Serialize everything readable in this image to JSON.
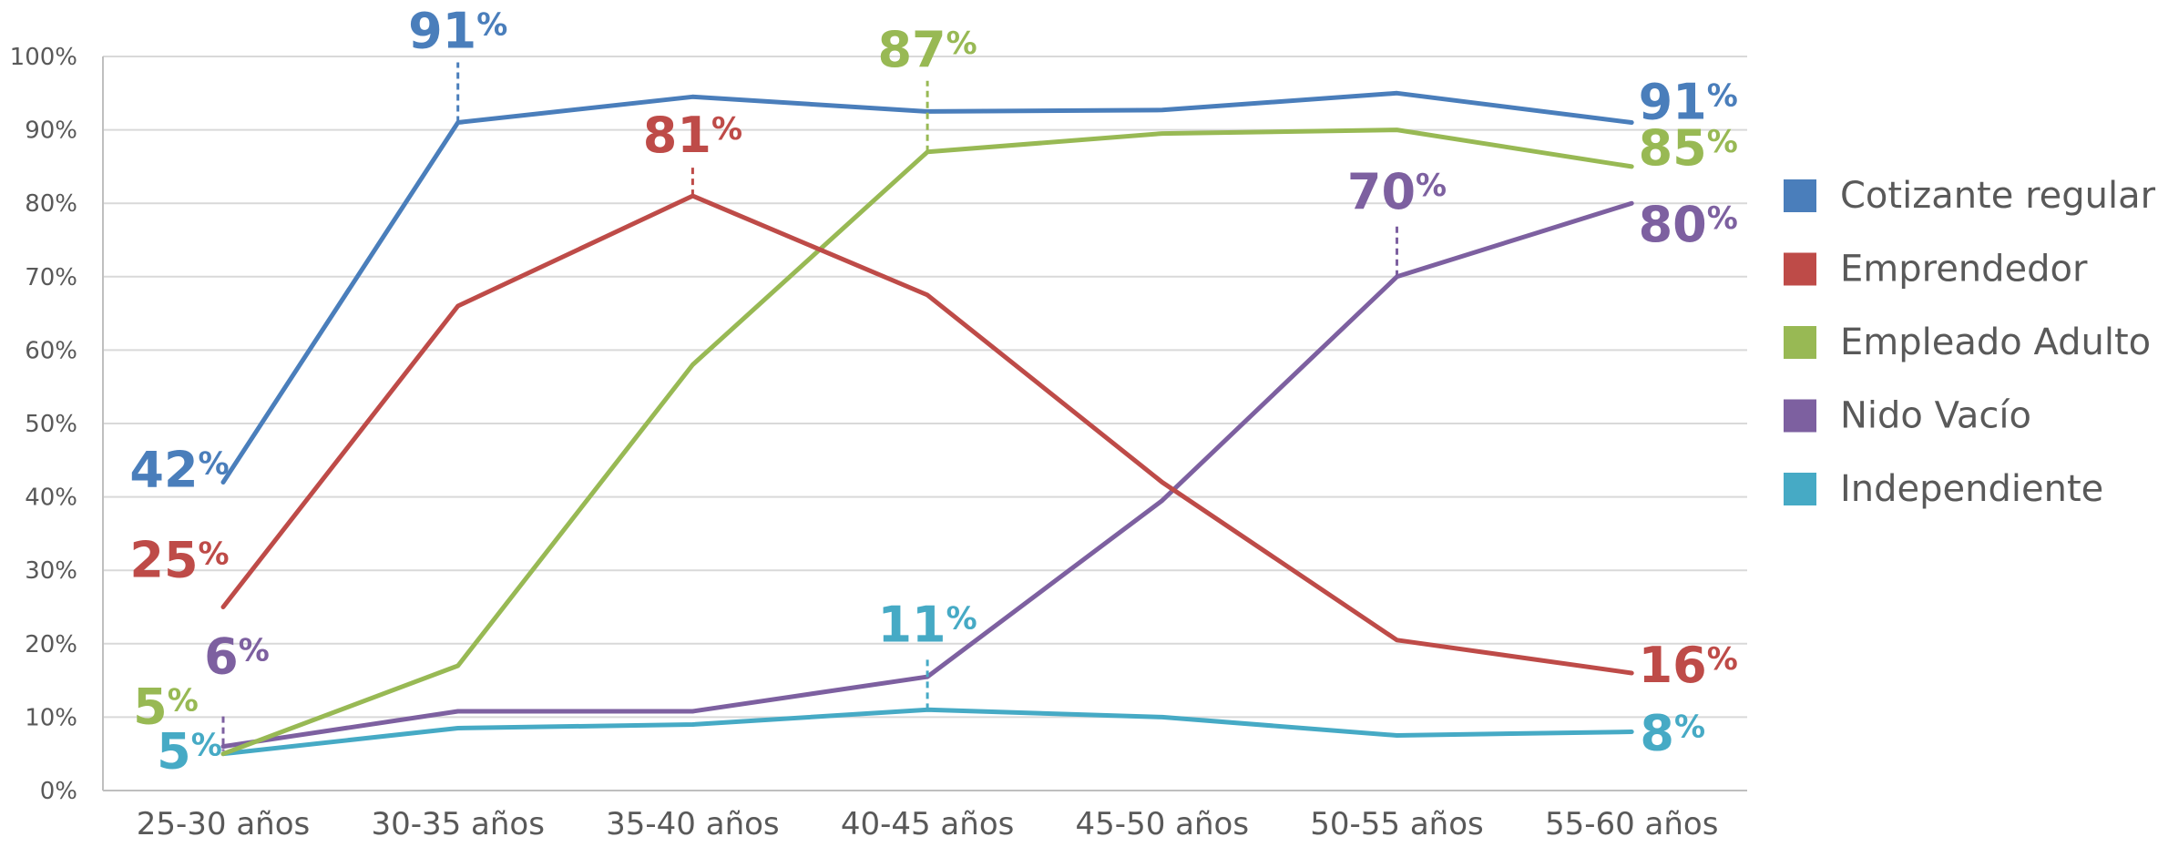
{
  "chart_data": {
    "type": "line",
    "categories": [
      "25-30 años",
      "30-35 años",
      "35-40 años",
      "40-45 años",
      "45-50 años",
      "50-55 años",
      "55-60 años"
    ],
    "ylim": [
      0,
      100
    ],
    "yticks": [
      "0%",
      "10%",
      "20%",
      "30%",
      "40%",
      "50%",
      "60%",
      "70%",
      "80%",
      "90%",
      "100%"
    ],
    "grid": true,
    "legend_position": "right",
    "series": [
      {
        "name": "Cotizante regular",
        "color": "#4a7ebb",
        "values": [
          42,
          91,
          94.5,
          92.5,
          92.7,
          95,
          91
        ]
      },
      {
        "name": "Emprendedor",
        "color": "#be4b48",
        "values": [
          25,
          66,
          81,
          67.5,
          42,
          20.5,
          16
        ]
      },
      {
        "name": "Empleado Adulto",
        "color": "#98b954",
        "values": [
          5,
          17,
          58,
          87,
          89.5,
          90,
          85
        ]
      },
      {
        "name": "Nido Vacío",
        "color": "#7d60a0",
        "values": [
          6,
          10.8,
          10.8,
          15.5,
          39.5,
          70,
          80
        ]
      },
      {
        "name": "Independiente",
        "color": "#46aac5",
        "values": [
          5,
          8.5,
          9,
          11,
          10,
          7.5,
          8
        ]
      }
    ],
    "annotations": [
      {
        "series": 0,
        "index": 0,
        "num": "42",
        "pct": "%"
      },
      {
        "series": 0,
        "index": 1,
        "num": "91",
        "pct": "%"
      },
      {
        "series": 0,
        "index": 6,
        "num": "91",
        "pct": "%"
      },
      {
        "series": 1,
        "index": 0,
        "num": "25",
        "pct": "%"
      },
      {
        "series": 1,
        "index": 2,
        "num": "81",
        "pct": "%"
      },
      {
        "series": 1,
        "index": 6,
        "num": "16",
        "pct": "%"
      },
      {
        "series": 2,
        "index": 0,
        "num": "5",
        "pct": "%"
      },
      {
        "series": 2,
        "index": 3,
        "num": "87",
        "pct": "%"
      },
      {
        "series": 2,
        "index": 6,
        "num": "85",
        "pct": "%"
      },
      {
        "series": 3,
        "index": 0,
        "num": "6",
        "pct": "%"
      },
      {
        "series": 3,
        "index": 5,
        "num": "70",
        "pct": "%"
      },
      {
        "series": 3,
        "index": 6,
        "num": "80",
        "pct": "%"
      },
      {
        "series": 4,
        "index": 0,
        "num": "5",
        "pct": "%"
      },
      {
        "series": 4,
        "index": 3,
        "num": "11",
        "pct": "%"
      },
      {
        "series": 4,
        "index": 6,
        "num": "8",
        "pct": "%"
      }
    ]
  }
}
